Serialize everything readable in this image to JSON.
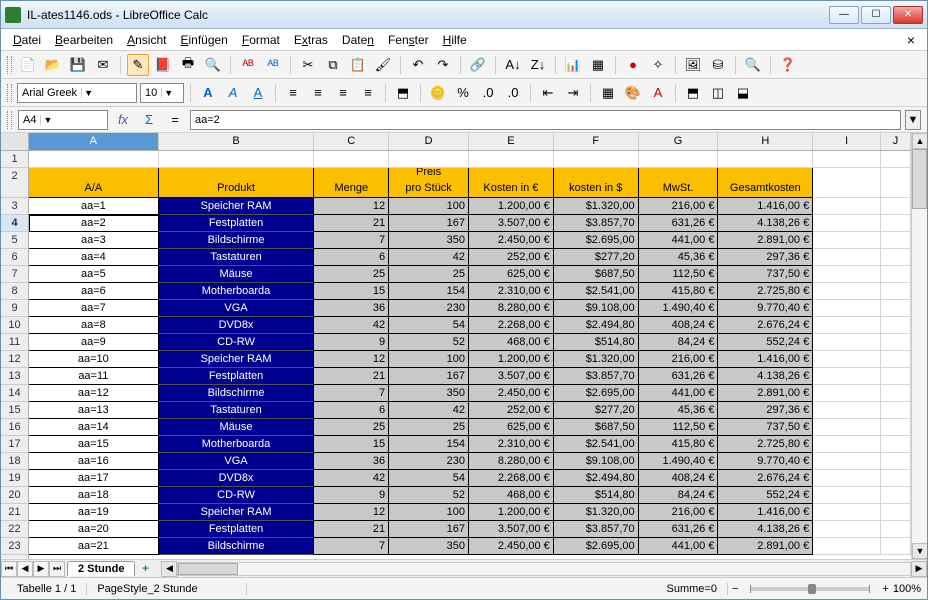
{
  "window": {
    "title": "IL-ates1146.ods - LibreOffice Calc"
  },
  "menu": {
    "items": [
      "Datei",
      "Bearbeiten",
      "Ansicht",
      "Einfügen",
      "Format",
      "Extras",
      "Daten",
      "Fenster",
      "Hilfe"
    ]
  },
  "format_toolbar": {
    "font": "Arial Greek",
    "size": "10"
  },
  "cellref": {
    "value": "A4"
  },
  "formula": {
    "value": "aa=2"
  },
  "columns": [
    "A",
    "B",
    "C",
    "D",
    "E",
    "F",
    "G",
    "H",
    "I",
    "J"
  ],
  "selected_col": "A",
  "selected_row": 4,
  "headers": {
    "aa": "A/A",
    "produkt": "Produkt",
    "menge": "Menge",
    "preis1": "Preis",
    "preis2": "pro Stück",
    "kosten_eur": "Kosten in €",
    "kosten_usd": "kosten in $",
    "mwst": "MwSt.",
    "gesamt": "Gesamtkosten"
  },
  "rows": [
    {
      "n": 3,
      "aa": "aa=1",
      "prod": "Speicher RAM",
      "menge": "12",
      "preis": "100",
      "keur": "1.200,00 €",
      "kusd": "$1.320,00",
      "mwst": "216,00 €",
      "ges": "1.416,00 €"
    },
    {
      "n": 4,
      "aa": "aa=2",
      "prod": "Festplatten",
      "menge": "21",
      "preis": "167",
      "keur": "3.507,00 €",
      "kusd": "$3.857,70",
      "mwst": "631,26 €",
      "ges": "4.138,26 €"
    },
    {
      "n": 5,
      "aa": "aa=3",
      "prod": "Bildschirme",
      "menge": "7",
      "preis": "350",
      "keur": "2.450,00 €",
      "kusd": "$2.695,00",
      "mwst": "441,00 €",
      "ges": "2.891,00 €"
    },
    {
      "n": 6,
      "aa": "aa=4",
      "prod": "Tastaturen",
      "menge": "6",
      "preis": "42",
      "keur": "252,00 €",
      "kusd": "$277,20",
      "mwst": "45,36 €",
      "ges": "297,36 €"
    },
    {
      "n": 7,
      "aa": "aa=5",
      "prod": "Mäuse",
      "menge": "25",
      "preis": "25",
      "keur": "625,00 €",
      "kusd": "$687,50",
      "mwst": "112,50 €",
      "ges": "737,50 €"
    },
    {
      "n": 8,
      "aa": "aa=6",
      "prod": "Motherboarda",
      "menge": "15",
      "preis": "154",
      "keur": "2.310,00 €",
      "kusd": "$2.541,00",
      "mwst": "415,80 €",
      "ges": "2.725,80 €"
    },
    {
      "n": 9,
      "aa": "aa=7",
      "prod": "VGA",
      "menge": "36",
      "preis": "230",
      "keur": "8.280,00 €",
      "kusd": "$9.108,00",
      "mwst": "1.490,40 €",
      "ges": "9.770,40 €"
    },
    {
      "n": 10,
      "aa": "aa=8",
      "prod": "DVD8x",
      "menge": "42",
      "preis": "54",
      "keur": "2.268,00 €",
      "kusd": "$2.494,80",
      "mwst": "408,24 €",
      "ges": "2.676,24 €"
    },
    {
      "n": 11,
      "aa": "aa=9",
      "prod": "CD-RW",
      "menge": "9",
      "preis": "52",
      "keur": "468,00 €",
      "kusd": "$514,80",
      "mwst": "84,24 €",
      "ges": "552,24 €"
    },
    {
      "n": 12,
      "aa": "aa=10",
      "prod": "Speicher RAM",
      "menge": "12",
      "preis": "100",
      "keur": "1.200,00 €",
      "kusd": "$1.320,00",
      "mwst": "216,00 €",
      "ges": "1.416,00 €"
    },
    {
      "n": 13,
      "aa": "aa=11",
      "prod": "Festplatten",
      "menge": "21",
      "preis": "167",
      "keur": "3.507,00 €",
      "kusd": "$3.857,70",
      "mwst": "631,26 €",
      "ges": "4.138,26 €"
    },
    {
      "n": 14,
      "aa": "aa=12",
      "prod": "Bildschirme",
      "menge": "7",
      "preis": "350",
      "keur": "2.450,00 €",
      "kusd": "$2.695,00",
      "mwst": "441,00 €",
      "ges": "2.891,00 €"
    },
    {
      "n": 15,
      "aa": "aa=13",
      "prod": "Tastaturen",
      "menge": "6",
      "preis": "42",
      "keur": "252,00 €",
      "kusd": "$277,20",
      "mwst": "45,36 €",
      "ges": "297,36 €"
    },
    {
      "n": 16,
      "aa": "aa=14",
      "prod": "Mäuse",
      "menge": "25",
      "preis": "25",
      "keur": "625,00 €",
      "kusd": "$687,50",
      "mwst": "112,50 €",
      "ges": "737,50 €"
    },
    {
      "n": 17,
      "aa": "aa=15",
      "prod": "Motherboarda",
      "menge": "15",
      "preis": "154",
      "keur": "2.310,00 €",
      "kusd": "$2.541,00",
      "mwst": "415,80 €",
      "ges": "2.725,80 €"
    },
    {
      "n": 18,
      "aa": "aa=16",
      "prod": "VGA",
      "menge": "36",
      "preis": "230",
      "keur": "8.280,00 €",
      "kusd": "$9.108,00",
      "mwst": "1.490,40 €",
      "ges": "9.770,40 €"
    },
    {
      "n": 19,
      "aa": "aa=17",
      "prod": "DVD8x",
      "menge": "42",
      "preis": "54",
      "keur": "2.268,00 €",
      "kusd": "$2.494,80",
      "mwst": "408,24 €",
      "ges": "2.676,24 €"
    },
    {
      "n": 20,
      "aa": "aa=18",
      "prod": "CD-RW",
      "menge": "9",
      "preis": "52",
      "keur": "468,00 €",
      "kusd": "$514,80",
      "mwst": "84,24 €",
      "ges": "552,24 €"
    },
    {
      "n": 21,
      "aa": "aa=19",
      "prod": "Speicher RAM",
      "menge": "12",
      "preis": "100",
      "keur": "1.200,00 €",
      "kusd": "$1.320,00",
      "mwst": "216,00 €",
      "ges": "1.416,00 €"
    },
    {
      "n": 22,
      "aa": "aa=20",
      "prod": "Festplatten",
      "menge": "21",
      "preis": "167",
      "keur": "3.507,00 €",
      "kusd": "$3.857,70",
      "mwst": "631,26 €",
      "ges": "4.138,26 €"
    },
    {
      "n": 23,
      "aa": "aa=21",
      "prod": "Bildschirme",
      "menge": "7",
      "preis": "350",
      "keur": "2.450,00 €",
      "kusd": "$2.695,00",
      "mwst": "441,00 €",
      "ges": "2.891,00 €"
    }
  ],
  "tab": {
    "name": "2 Stunde"
  },
  "status": {
    "sheet": "Tabelle 1 / 1",
    "style": "PageStyle_2 Stunde",
    "sum": "Summe=0",
    "zoom": "100%"
  },
  "colors": {
    "header_bg": "#fac000",
    "product_bg": "#000090",
    "data_bg": "#c8c8c8",
    "sel_col": "#5a9ad4"
  }
}
